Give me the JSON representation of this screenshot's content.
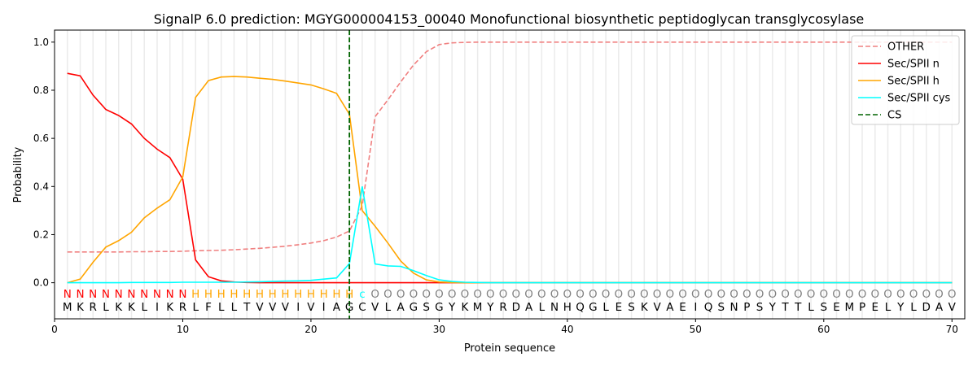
{
  "chart_data": {
    "type": "line",
    "title": "SignalP 6.0 prediction: MGYG000004153_00040 Monofunctional biosynthetic peptidoglycan transglycosylase",
    "xlabel": "Protein sequence",
    "ylabel": "Probability",
    "xlim": [
      0,
      71
    ],
    "ylim": [
      -0.15,
      1.05
    ],
    "xticks": [
      0,
      10,
      20,
      30,
      40,
      50,
      60,
      70
    ],
    "yticks": [
      0.0,
      0.2,
      0.4,
      0.6,
      0.8,
      1.0
    ],
    "ytick_labels": [
      "0.0",
      "0.2",
      "0.4",
      "0.6",
      "0.8",
      "1.0"
    ],
    "grid": "vertical lines at each residue",
    "legend_position": "top-right",
    "sequence": "MKRLKKLIKRLFLLTVVVIVIAGCVLAGSGYKMYRDALNHQGLESKVAEIQSNPSYTTLSEMPELYLDAV",
    "labels": "NNNNNNNNNNHHHHHHHHHHHHHCOOOOOOOOOOOOOOOOOOOOOOOOOOOOOOOOOOOOOOOOOOOOOO",
    "label_colors": {
      "N": "#ff0000",
      "H": "#ffa500",
      "C": "#00ffff",
      "O": "#808080"
    },
    "cleavage_site": {
      "name": "CS",
      "x": 23,
      "color": "#006400"
    },
    "series": [
      {
        "name": "OTHER",
        "color": "#f08080",
        "dash": true,
        "values": [
          0.128,
          0.128,
          0.128,
          0.128,
          0.128,
          0.129,
          0.129,
          0.13,
          0.13,
          0.131,
          0.133,
          0.134,
          0.135,
          0.137,
          0.14,
          0.143,
          0.147,
          0.152,
          0.158,
          0.165,
          0.175,
          0.19,
          0.215,
          0.32,
          0.69,
          0.76,
          0.835,
          0.905,
          0.96,
          0.99,
          0.997,
          0.999,
          1,
          1,
          1,
          1,
          1,
          1,
          1,
          1,
          1,
          1,
          1,
          1,
          1,
          1,
          1,
          1,
          1,
          1,
          1,
          1,
          1,
          1,
          1,
          1,
          1,
          1,
          1,
          1,
          1,
          1,
          1,
          1,
          1,
          1,
          1,
          1,
          1,
          1
        ]
      },
      {
        "name": "Sec/SPII n",
        "color": "#ff0000",
        "dash": false,
        "values": [
          0.87,
          0.86,
          0.78,
          0.72,
          0.695,
          0.66,
          0.6,
          0.555,
          0.52,
          0.43,
          0.095,
          0.025,
          0.008,
          0.003,
          0.001,
          0,
          0,
          0,
          0,
          0,
          0,
          0,
          0,
          0,
          0,
          0,
          0,
          0,
          0,
          0,
          0,
          0,
          0,
          0,
          0,
          0,
          0,
          0,
          0,
          0,
          0,
          0,
          0,
          0,
          0,
          0,
          0,
          0,
          0,
          0,
          0,
          0,
          0,
          0,
          0,
          0,
          0,
          0,
          0,
          0,
          0,
          0,
          0,
          0,
          0,
          0,
          0,
          0,
          0,
          0
        ]
      },
      {
        "name": "Sec/SPII h",
        "color": "#ffa500",
        "dash": false,
        "values": [
          0.0,
          0.015,
          0.085,
          0.148,
          0.175,
          0.21,
          0.27,
          0.31,
          0.345,
          0.44,
          0.77,
          0.84,
          0.855,
          0.857,
          0.855,
          0.85,
          0.845,
          0.838,
          0.83,
          0.822,
          0.806,
          0.787,
          0.7,
          0.3,
          0.235,
          0.165,
          0.09,
          0.04,
          0.012,
          0.003,
          0.001,
          0,
          0,
          0,
          0,
          0,
          0,
          0,
          0,
          0,
          0,
          0,
          0,
          0,
          0,
          0,
          0,
          0,
          0,
          0,
          0,
          0,
          0,
          0,
          0,
          0,
          0,
          0,
          0,
          0,
          0,
          0,
          0,
          0,
          0,
          0,
          0,
          0,
          0,
          0
        ]
      },
      {
        "name": "Sec/SPII cys",
        "color": "#00ffff",
        "dash": false,
        "values": [
          0,
          0,
          0,
          0,
          0,
          0.001,
          0.001,
          0.001,
          0.001,
          0.002,
          0.002,
          0.002,
          0.002,
          0.002,
          0.003,
          0.004,
          0.006,
          0.007,
          0.008,
          0.01,
          0.015,
          0.02,
          0.08,
          0.4,
          0.078,
          0.07,
          0.068,
          0.05,
          0.03,
          0.012,
          0.005,
          0.002,
          0.001,
          0,
          0,
          0,
          0,
          0,
          0,
          0,
          0,
          0,
          0,
          0,
          0,
          0,
          0,
          0,
          0,
          0,
          0,
          0,
          0,
          0,
          0,
          0,
          0,
          0,
          0,
          0,
          0,
          0,
          0,
          0,
          0,
          0,
          0,
          0,
          0,
          0
        ]
      }
    ]
  }
}
